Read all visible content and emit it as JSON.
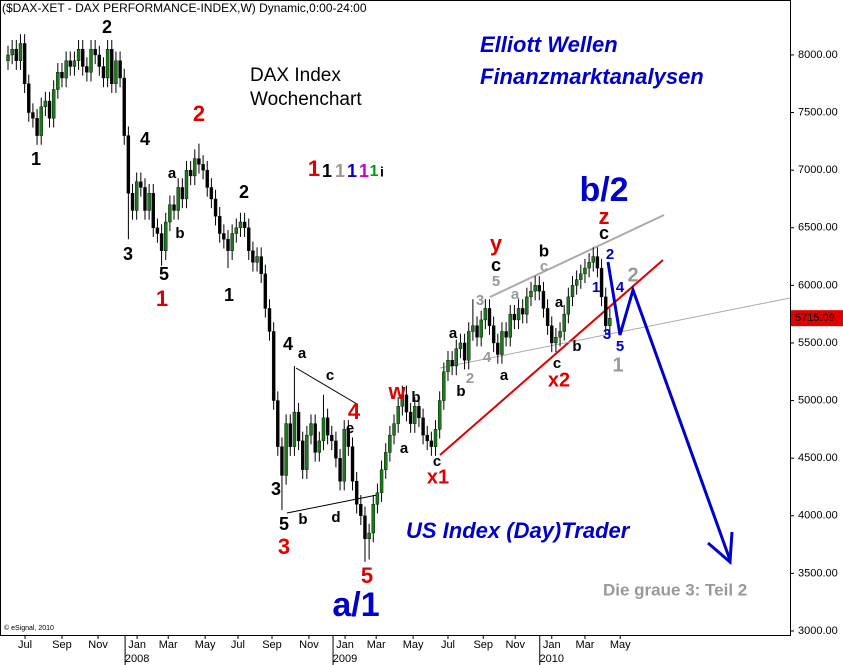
{
  "chart_data": {
    "type": "candlestick",
    "title": "($DAX-XET - DAX PERFORMANCE-INDEX,W) Dynamic,0:00-24:00",
    "credit": "© eSignal, 2010",
    "headings": {
      "index": "DAX Index",
      "period": "Wochenchart",
      "brand1": "Elliott Wellen",
      "brand2": "Finanzmarktanalysen",
      "trader": "US Index (Day)Trader",
      "note": "Die graue 3: Teil 2"
    },
    "up_color": "#1a7a1a",
    "down_color": "#000000",
    "last_label_color": "#e00000",
    "ylim": [
      2965,
      8477
    ],
    "yticks": [
      {
        "value": 3000,
        "label": "3000.00"
      },
      {
        "value": 3500,
        "label": "3500.00"
      },
      {
        "value": 4000,
        "label": "4000.00"
      },
      {
        "value": 4500,
        "label": "4500.00"
      },
      {
        "value": 5000,
        "label": "5000.00"
      },
      {
        "value": 5500,
        "label": "5500.00"
      },
      {
        "value": 6000,
        "label": "6000.00"
      },
      {
        "value": 6500,
        "label": "6500.00"
      },
      {
        "value": 7000,
        "label": "7000.00"
      },
      {
        "value": 7500,
        "label": "7500.00"
      },
      {
        "value": 8000,
        "label": "8000.00"
      }
    ],
    "xlim": [
      -1.93,
      188.4
    ],
    "xticks": [
      {
        "value": 4.1,
        "label": "Jul"
      },
      {
        "value": 13,
        "label": "Sep"
      },
      {
        "value": 21.7,
        "label": "Nov"
      },
      {
        "value": 31.1,
        "label": "Jan"
      },
      {
        "value": 38.6,
        "label": "Mar"
      },
      {
        "value": 47.5,
        "label": "May"
      },
      {
        "value": 55.4,
        "label": "Jul"
      },
      {
        "value": 63.6,
        "label": "Sep"
      },
      {
        "value": 72.5,
        "label": "Nov"
      },
      {
        "value": 81.2,
        "label": "Jan"
      },
      {
        "value": 88.7,
        "label": "Mar"
      },
      {
        "value": 97.6,
        "label": "May"
      },
      {
        "value": 106,
        "label": "Jul"
      },
      {
        "value": 114.5,
        "label": "Sep"
      },
      {
        "value": 122.2,
        "label": "Nov"
      },
      {
        "value": 131,
        "label": "Jan"
      },
      {
        "value": 139,
        "label": "Mar"
      },
      {
        "value": 147.5,
        "label": "May"
      }
    ],
    "year_ticks": [
      {
        "value": 31.1,
        "label": "2008"
      },
      {
        "value": 81.2,
        "label": "2009"
      },
      {
        "value": 131,
        "label": "2010"
      }
    ],
    "ohlc": [
      [
        7950,
        8080,
        7870,
        8000
      ],
      [
        8000,
        8130,
        7920,
        8050
      ],
      [
        8050,
        8130,
        7870,
        7950
      ],
      [
        7950,
        8180,
        7870,
        8100
      ],
      [
        8100,
        8180,
        7670,
        7750
      ],
      [
        7750,
        7830,
        7420,
        7500
      ],
      [
        7500,
        7580,
        7370,
        7450
      ],
      [
        7450,
        7530,
        7220,
        7300
      ],
      [
        7300,
        7630,
        7220,
        7550
      ],
      [
        7550,
        7680,
        7470,
        7600
      ],
      [
        7600,
        7680,
        7370,
        7450
      ],
      [
        7450,
        7780,
        7370,
        7700
      ],
      [
        7700,
        7930,
        7620,
        7850
      ],
      [
        7850,
        7930,
        7720,
        7800
      ],
      [
        7800,
        8030,
        7720,
        7950
      ],
      [
        7950,
        8030,
        7820,
        7900
      ],
      [
        7900,
        8030,
        7820,
        7950
      ],
      [
        7950,
        8130,
        7870,
        8050
      ],
      [
        8050,
        8130,
        7820,
        7900
      ],
      [
        7900,
        7980,
        7770,
        7850
      ],
      [
        7850,
        8130,
        7770,
        8050
      ],
      [
        8050,
        8130,
        7920,
        8000
      ],
      [
        8000,
        8080,
        7820,
        7900
      ],
      [
        7900,
        7980,
        7720,
        7800
      ],
      [
        7800,
        8130,
        7720,
        8050
      ],
      [
        8050,
        8130,
        7670,
        7750
      ],
      [
        7750,
        8030,
        7670,
        7950
      ],
      [
        7950,
        8030,
        7720,
        7800
      ],
      [
        7800,
        7880,
        7220,
        7300
      ],
      [
        7300,
        7380,
        6400,
        6800
      ],
      [
        6800,
        6880,
        6570,
        6650
      ],
      [
        6650,
        6980,
        6570,
        6900
      ],
      [
        6900,
        6980,
        6770,
        6850
      ],
      [
        6850,
        6930,
        6570,
        6650
      ],
      [
        6650,
        6880,
        6570,
        6800
      ],
      [
        6800,
        6880,
        6420,
        6500
      ],
      [
        6500,
        6580,
        6370,
        6450
      ],
      [
        6450,
        6530,
        6170,
        6300
      ],
      [
        6300,
        6630,
        6220,
        6550
      ],
      [
        6550,
        6780,
        6470,
        6700
      ],
      [
        6700,
        6780,
        6570,
        6650
      ],
      [
        6650,
        6930,
        6570,
        6850
      ],
      [
        6850,
        6930,
        6670,
        6750
      ],
      [
        6750,
        7080,
        6670,
        7000
      ],
      [
        7000,
        7080,
        6870,
        6950
      ],
      [
        6950,
        7180,
        6870,
        7100
      ],
      [
        7100,
        7230,
        6970,
        7050
      ],
      [
        7050,
        7130,
        6920,
        7000
      ],
      [
        7000,
        7080,
        6770,
        6850
      ],
      [
        6850,
        6930,
        6670,
        6750
      ],
      [
        6750,
        6830,
        6520,
        6600
      ],
      [
        6600,
        6680,
        6370,
        6450
      ],
      [
        6450,
        6530,
        6320,
        6400
      ],
      [
        6400,
        6480,
        6150,
        6300
      ],
      [
        6300,
        6530,
        6220,
        6450
      ],
      [
        6450,
        6580,
        6370,
        6500
      ],
      [
        6500,
        6630,
        6420,
        6550
      ],
      [
        6550,
        6630,
        6420,
        6500
      ],
      [
        6500,
        6580,
        6220,
        6300
      ],
      [
        6300,
        6380,
        6120,
        6200
      ],
      [
        6200,
        6330,
        6120,
        6250
      ],
      [
        6250,
        6330,
        6020,
        6100
      ],
      [
        6100,
        6180,
        5720,
        5800
      ],
      [
        5800,
        5880,
        5520,
        5600
      ],
      [
        5600,
        5680,
        4920,
        5000
      ],
      [
        5000,
        5080,
        4520,
        4600
      ],
      [
        4600,
        4680,
        4050,
        4350
      ],
      [
        4350,
        4880,
        4270,
        4800
      ],
      [
        4800,
        4880,
        4520,
        4600
      ],
      [
        4600,
        5300,
        4520,
        4900
      ],
      [
        4900,
        4980,
        4570,
        4650
      ],
      [
        4650,
        4730,
        4320,
        4400
      ],
      [
        4400,
        4780,
        4320,
        4700
      ],
      [
        4700,
        4880,
        4620,
        4800
      ],
      [
        4800,
        4880,
        4470,
        4550
      ],
      [
        4550,
        4730,
        4470,
        4650
      ],
      [
        4650,
        5050,
        4570,
        4850
      ],
      [
        4850,
        4930,
        4620,
        4700
      ],
      [
        4700,
        4780,
        4570,
        4650
      ],
      [
        4650,
        4730,
        4420,
        4500
      ],
      [
        4500,
        4580,
        4220,
        4300
      ],
      [
        4300,
        4830,
        4220,
        4750
      ],
      [
        4750,
        4830,
        4520,
        4600
      ],
      [
        4600,
        4680,
        4220,
        4300
      ],
      [
        4300,
        4380,
        4020,
        4100
      ],
      [
        4100,
        4180,
        3920,
        4000
      ],
      [
        4000,
        4080,
        3600,
        3800
      ],
      [
        3800,
        3930,
        3620,
        3850
      ],
      [
        3850,
        4180,
        3770,
        4100
      ],
      [
        4100,
        4280,
        4020,
        4200
      ],
      [
        4200,
        4480,
        4120,
        4400
      ],
      [
        4400,
        4630,
        4320,
        4550
      ],
      [
        4550,
        4780,
        4470,
        4700
      ],
      [
        4700,
        4880,
        4620,
        4800
      ],
      [
        4800,
        5030,
        4720,
        4950
      ],
      [
        4950,
        5130,
        4870,
        5050
      ],
      [
        5050,
        5130,
        4820,
        4900
      ],
      [
        4900,
        4980,
        4720,
        4800
      ],
      [
        4800,
        5030,
        4720,
        4950
      ],
      [
        4950,
        5030,
        4770,
        4850
      ],
      [
        4850,
        4930,
        4620,
        4700
      ],
      [
        4700,
        4780,
        4570,
        4650
      ],
      [
        4650,
        4730,
        4520,
        4600
      ],
      [
        4600,
        4830,
        4520,
        4750
      ],
      [
        4750,
        5080,
        4670,
        5000
      ],
      [
        5000,
        5330,
        4920,
        5250
      ],
      [
        5250,
        5430,
        5170,
        5350
      ],
      [
        5350,
        5430,
        5220,
        5300
      ],
      [
        5300,
        5530,
        5220,
        5450
      ],
      [
        5450,
        5580,
        5370,
        5500
      ],
      [
        5500,
        5580,
        5270,
        5350
      ],
      [
        5350,
        5680,
        5270,
        5600
      ],
      [
        5600,
        5880,
        5520,
        5650
      ],
      [
        5650,
        5730,
        5470,
        5550
      ],
      [
        5550,
        5780,
        5470,
        5700
      ],
      [
        5700,
        5880,
        5620,
        5800
      ],
      [
        5800,
        5880,
        5570,
        5650
      ],
      [
        5650,
        5730,
        5420,
        5500
      ],
      [
        5500,
        5580,
        5320,
        5400
      ],
      [
        5400,
        5680,
        5320,
        5600
      ],
      [
        5600,
        5680,
        5470,
        5550
      ],
      [
        5550,
        5830,
        5470,
        5750
      ],
      [
        5750,
        5830,
        5620,
        5700
      ],
      [
        5700,
        5880,
        5620,
        5800
      ],
      [
        5800,
        5880,
        5670,
        5750
      ],
      [
        5750,
        5980,
        5670,
        5900
      ],
      [
        5900,
        6030,
        5820,
        5950
      ],
      [
        5950,
        6080,
        5870,
        6000
      ],
      [
        6000,
        6080,
        5870,
        5950
      ],
      [
        5950,
        6030,
        5720,
        5800
      ],
      [
        5800,
        5880,
        5570,
        5650
      ],
      [
        5650,
        5730,
        5420,
        5500
      ],
      [
        5500,
        5630,
        5420,
        5550
      ],
      [
        5550,
        5680,
        5470,
        5600
      ],
      [
        5600,
        5830,
        5520,
        5750
      ],
      [
        5750,
        5980,
        5670,
        5900
      ],
      [
        5900,
        6080,
        5820,
        6000
      ],
      [
        6000,
        6130,
        5920,
        6050
      ],
      [
        6050,
        6180,
        5970,
        6100
      ],
      [
        6100,
        6230,
        6020,
        6150
      ],
      [
        6150,
        6280,
        6070,
        6200
      ],
      [
        6200,
        6330,
        6120,
        6250
      ],
      [
        6250,
        6330,
        6070,
        6150
      ],
      [
        6150,
        6230,
        5820,
        5900
      ],
      [
        5900,
        5980,
        5570,
        5650
      ],
      [
        5650,
        5800,
        5570,
        5715.09
      ]
    ],
    "annotations": [
      {
        "text": "2",
        "color": "#000000"
      },
      {
        "text": "1",
        "color": "#000000"
      },
      {
        "text": "4",
        "color": "#000000"
      },
      {
        "text": "a",
        "color": "#000000"
      },
      {
        "text": "b",
        "color": "#000000"
      },
      {
        "text": "3",
        "color": "#000000"
      },
      {
        "text": "5",
        "color": "#000000"
      },
      {
        "text": "2",
        "color": "#000000"
      },
      {
        "text": "1",
        "color": "#000000"
      },
      {
        "text": "4",
        "color": "#000000"
      },
      {
        "text": "a",
        "color": "#000000"
      },
      {
        "text": "c",
        "color": "#000000"
      },
      {
        "text": "3",
        "color": "#000000"
      },
      {
        "text": "e",
        "color": "#000000"
      },
      {
        "text": "5",
        "color": "#000000"
      },
      {
        "text": "b",
        "color": "#000000"
      },
      {
        "text": "d",
        "color": "#000000"
      },
      {
        "text": "a",
        "color": "#000000"
      },
      {
        "text": "b",
        "color": "#000000"
      },
      {
        "text": "c",
        "color": "#000000"
      },
      {
        "text": "a",
        "color": "#000000"
      },
      {
        "text": "b",
        "color": "#000000"
      },
      {
        "text": "c",
        "color": "#000000"
      },
      {
        "text": "a",
        "color": "#000000"
      },
      {
        "text": "b",
        "color": "#000000"
      },
      {
        "text": "a",
        "color": "#000000"
      },
      {
        "text": "c",
        "color": "#000000"
      },
      {
        "text": "b",
        "color": "#000000"
      },
      {
        "text": "c",
        "color": "#000000"
      },
      {
        "text": "2",
        "color": "#e00000"
      },
      {
        "text": "1",
        "color": "#e00000"
      },
      {
        "text": "4",
        "color": "#e00000"
      },
      {
        "text": "3",
        "color": "#e00000"
      },
      {
        "text": "5",
        "color": "#e00000"
      },
      {
        "text": "w",
        "color": "#e00000"
      },
      {
        "text": "y",
        "color": "#e00000"
      },
      {
        "text": "x1",
        "color": "#e00000"
      },
      {
        "text": "x2",
        "color": "#e00000"
      },
      {
        "text": "z",
        "color": "#e00000"
      },
      {
        "text": "b/2",
        "color": "#0000cc"
      },
      {
        "text": "a/1",
        "color": "#0000cc"
      },
      {
        "text": "2",
        "color": "#0000cc"
      },
      {
        "text": "1",
        "color": "#0000cc"
      },
      {
        "text": "3",
        "color": "#0000cc"
      },
      {
        "text": "4",
        "color": "#0000cc"
      },
      {
        "text": "5",
        "color": "#0000cc"
      },
      {
        "text": "5",
        "color": "#999999"
      },
      {
        "text": "3",
        "color": "#999999"
      },
      {
        "text": "a",
        "color": "#999999"
      },
      {
        "text": "c",
        "color": "#999999"
      },
      {
        "text": "4",
        "color": "#999999"
      },
      {
        "text": "2",
        "color": "#999999"
      },
      {
        "text": "2",
        "color": "#999999"
      },
      {
        "text": "1",
        "color": "#999999"
      },
      {
        "text": "1",
        "color": "#e00000"
      },
      {
        "text": "1",
        "color": "#000000"
      },
      {
        "text": "1",
        "color": "#999999"
      },
      {
        "text": "1",
        "color": "#0000cc"
      },
      {
        "text": "1",
        "color": "#cc00cc"
      },
      {
        "text": "1",
        "color": "#00a000"
      },
      {
        "text": "i",
        "color": "#000000"
      }
    ]
  }
}
